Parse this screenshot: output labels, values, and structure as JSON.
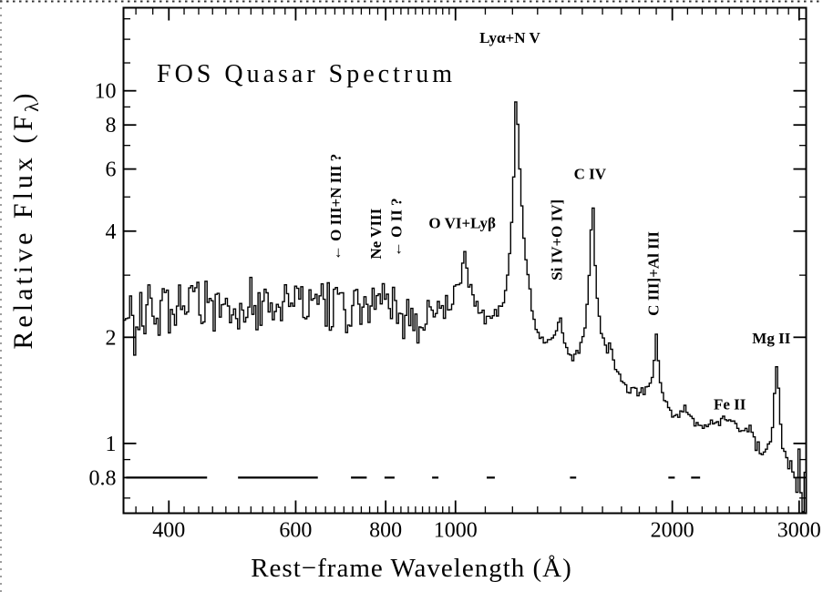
{
  "figure": {
    "title": "FOS Quasar Spectrum",
    "xlabel": "Rest−frame Wavelength (Å)",
    "ylabel_parts": {
      "prefix": "Relative Flux (F",
      "sub": "λ",
      "suffix": ")"
    }
  },
  "colors": {
    "ink": "#000000",
    "background": "#ffffff"
  },
  "chart_data": {
    "type": "line",
    "title": "FOS Quasar Spectrum",
    "xlabel": "Rest-frame Wavelength (Angstrom)",
    "ylabel": "Relative Flux (F_lambda)",
    "x_scale": "log",
    "y_scale": "log",
    "grid": false,
    "legend": false,
    "x_range": [
      346,
      3068
    ],
    "y_range": [
      0.634,
      17.2
    ],
    "x_ticks_major": [
      400,
      600,
      800,
      1000,
      2000,
      3000
    ],
    "x_tick_labels": [
      "400",
      "600",
      "800",
      "1000",
      "2000",
      "3000"
    ],
    "x_ticks_minor": [
      360,
      380,
      420,
      440,
      460,
      480,
      500,
      520,
      540,
      560,
      580,
      620,
      640,
      660,
      680,
      700,
      720,
      740,
      760,
      780,
      820,
      840,
      860,
      880,
      900,
      920,
      940,
      960,
      980,
      1100,
      1200,
      1300,
      1400,
      1500,
      1600,
      1700,
      1800,
      1900,
      2100,
      2200,
      2300,
      2400,
      2500,
      2600,
      2700,
      2800,
      2900
    ],
    "y_ticks_major": [
      10,
      8,
      6,
      4,
      2,
      1,
      0.8
    ],
    "y_tick_labels": [
      "10",
      "8",
      "6",
      "4",
      "2",
      "1",
      "0.8"
    ],
    "y_ticks_minor": [
      16,
      14,
      12,
      9,
      7,
      5,
      3,
      0.9,
      0.7
    ],
    "spectrum_control_points": [
      [
        346,
        2.1
      ],
      [
        352,
        2.5
      ],
      [
        358,
        2.0
      ],
      [
        365,
        2.55
      ],
      [
        372,
        2.3
      ],
      [
        380,
        2.5
      ],
      [
        390,
        2.4
      ],
      [
        400,
        2.5
      ],
      [
        415,
        2.35
      ],
      [
        430,
        2.55
      ],
      [
        450,
        2.45
      ],
      [
        470,
        2.5
      ],
      [
        490,
        2.4
      ],
      [
        510,
        2.5
      ],
      [
        530,
        2.55
      ],
      [
        550,
        2.45
      ],
      [
        570,
        2.5
      ],
      [
        590,
        2.45
      ],
      [
        610,
        2.5
      ],
      [
        630,
        2.4
      ],
      [
        650,
        2.45
      ],
      [
        670,
        2.4
      ],
      [
        690,
        2.45
      ],
      [
        710,
        2.4
      ],
      [
        730,
        2.45
      ],
      [
        750,
        2.5
      ],
      [
        774,
        2.6
      ],
      [
        790,
        2.5
      ],
      [
        810,
        2.45
      ],
      [
        830,
        2.4
      ],
      [
        850,
        2.35
      ],
      [
        870,
        2.3
      ],
      [
        900,
        2.28
      ],
      [
        930,
        2.3
      ],
      [
        960,
        2.4
      ],
      [
        990,
        2.55
      ],
      [
        1010,
        2.8
      ],
      [
        1022,
        3.1
      ],
      [
        1031,
        3.5
      ],
      [
        1040,
        3.05
      ],
      [
        1055,
        2.6
      ],
      [
        1075,
        2.4
      ],
      [
        1100,
        2.32
      ],
      [
        1125,
        2.28
      ],
      [
        1150,
        2.38
      ],
      [
        1170,
        2.6
      ],
      [
        1185,
        3.1
      ],
      [
        1200,
        4.6
      ],
      [
        1208,
        6.8
      ],
      [
        1216,
        9.3
      ],
      [
        1224,
        7.2
      ],
      [
        1232,
        5.2
      ],
      [
        1240,
        4.3
      ],
      [
        1250,
        3.5
      ],
      [
        1262,
        2.9
      ],
      [
        1275,
        2.45
      ],
      [
        1290,
        2.15
      ],
      [
        1305,
        2.0
      ],
      [
        1320,
        1.97
      ],
      [
        1340,
        1.94
      ],
      [
        1360,
        1.99
      ],
      [
        1378,
        2.08
      ],
      [
        1390,
        2.2
      ],
      [
        1397,
        2.3
      ],
      [
        1406,
        2.15
      ],
      [
        1420,
        1.95
      ],
      [
        1438,
        1.82
      ],
      [
        1455,
        1.74
      ],
      [
        1470,
        1.75
      ],
      [
        1485,
        1.83
      ],
      [
        1500,
        1.95
      ],
      [
        1512,
        2.1
      ],
      [
        1524,
        2.45
      ],
      [
        1535,
        3.1
      ],
      [
        1542,
        3.9
      ],
      [
        1549,
        4.65
      ],
      [
        1556,
        3.9
      ],
      [
        1564,
        3.1
      ],
      [
        1572,
        2.6
      ],
      [
        1582,
        2.35
      ],
      [
        1595,
        2.1
      ],
      [
        1610,
        1.92
      ],
      [
        1625,
        1.8
      ],
      [
        1637,
        1.9
      ],
      [
        1648,
        1.78
      ],
      [
        1662,
        1.66
      ],
      [
        1680,
        1.58
      ],
      [
        1700,
        1.52
      ],
      [
        1725,
        1.46
      ],
      [
        1750,
        1.42
      ],
      [
        1775,
        1.4
      ],
      [
        1800,
        1.38
      ],
      [
        1825,
        1.4
      ],
      [
        1850,
        1.46
      ],
      [
        1870,
        1.52
      ],
      [
        1885,
        1.65
      ],
      [
        1896,
        2.0
      ],
      [
        1903,
        2.02
      ],
      [
        1912,
        1.75
      ],
      [
        1925,
        1.52
      ],
      [
        1940,
        1.4
      ],
      [
        1960,
        1.3
      ],
      [
        1980,
        1.24
      ],
      [
        2010,
        1.21
      ],
      [
        2040,
        1.2
      ],
      [
        2070,
        1.24
      ],
      [
        2095,
        1.26
      ],
      [
        2115,
        1.22
      ],
      [
        2140,
        1.17
      ],
      [
        2170,
        1.13
      ],
      [
        2200,
        1.12
      ],
      [
        2240,
        1.13
      ],
      [
        2280,
        1.15
      ],
      [
        2320,
        1.16
      ],
      [
        2360,
        1.16
      ],
      [
        2400,
        1.15
      ],
      [
        2440,
        1.16
      ],
      [
        2480,
        1.14
      ],
      [
        2520,
        1.12
      ],
      [
        2560,
        1.08
      ],
      [
        2600,
        1.03
      ],
      [
        2640,
        0.98
      ],
      [
        2675,
        0.95
      ],
      [
        2700,
        0.94
      ],
      [
        2725,
        0.98
      ],
      [
        2745,
        1.07
      ],
      [
        2765,
        1.22
      ],
      [
        2782,
        1.45
      ],
      [
        2796,
        1.65
      ],
      [
        2806,
        1.5
      ],
      [
        2818,
        1.28
      ],
      [
        2832,
        1.1
      ],
      [
        2848,
        0.98
      ],
      [
        2865,
        0.92
      ],
      [
        2885,
        0.88
      ],
      [
        2910,
        0.86
      ],
      [
        2940,
        0.84
      ],
      [
        2970,
        0.82
      ],
      [
        3000,
        0.8
      ],
      [
        3030,
        0.77
      ],
      [
        3068,
        0.72
      ]
    ],
    "peak_enforce": [
      [
        1031,
        3.5
      ],
      [
        1216,
        9.3
      ],
      [
        1549,
        4.65
      ],
      [
        1903,
        2.02
      ],
      [
        2796,
        1.65
      ]
    ],
    "noise_profile": [
      [
        346,
        0.1
      ],
      [
        500,
        0.1
      ],
      [
        650,
        0.095
      ],
      [
        800,
        0.09
      ],
      [
        900,
        0.075
      ],
      [
        960,
        0.05
      ],
      [
        1000,
        0.035
      ],
      [
        1031,
        0.025
      ],
      [
        1070,
        0.03
      ],
      [
        1120,
        0.03
      ],
      [
        1170,
        0.025
      ],
      [
        1216,
        0.012
      ],
      [
        1260,
        0.02
      ],
      [
        1320,
        0.022
      ],
      [
        1400,
        0.018
      ],
      [
        1470,
        0.018
      ],
      [
        1549,
        0.01
      ],
      [
        1620,
        0.018
      ],
      [
        1700,
        0.018
      ],
      [
        1800,
        0.016
      ],
      [
        1903,
        0.01
      ],
      [
        1960,
        0.015
      ],
      [
        2050,
        0.018
      ],
      [
        2150,
        0.02
      ],
      [
        2250,
        0.022
      ],
      [
        2350,
        0.025
      ],
      [
        2450,
        0.025
      ],
      [
        2550,
        0.028
      ],
      [
        2650,
        0.03
      ],
      [
        2745,
        0.022
      ],
      [
        2796,
        0.02
      ],
      [
        2850,
        0.04
      ],
      [
        2900,
        0.06
      ],
      [
        2950,
        0.08
      ],
      [
        3000,
        0.11
      ],
      [
        3040,
        0.14
      ],
      [
        3068,
        0.16
      ]
    ],
    "n_bins": 335,
    "noise_seed": 20,
    "continuum_windows_flux": 0.8,
    "continuum_windows": [
      [
        349,
        452
      ],
      [
        499,
        644
      ],
      [
        716,
        753
      ],
      [
        797,
        823
      ],
      [
        928,
        947
      ],
      [
        1105,
        1134
      ],
      [
        1442,
        1471
      ],
      [
        1975,
        2016
      ],
      [
        2124,
        2186
      ]
    ],
    "annotations": [
      {
        "id": "lya-nv",
        "label": "Lyα+N V",
        "wavelength": 1190,
        "flux": 14.0,
        "rotated": false,
        "arrow": false
      },
      {
        "id": "o3-n3",
        "label": "← O III+N III ?",
        "wavelength": 685,
        "flux": 3.3,
        "rotated": true,
        "arrow": true
      },
      {
        "id": "ne8",
        "label": "Ne VIII",
        "wavelength": 779,
        "flux": 3.33,
        "rotated": true,
        "arrow": false
      },
      {
        "id": "o2",
        "label": "← O II ?",
        "wavelength": 832,
        "flux": 3.38,
        "rotated": true,
        "arrow": true
      },
      {
        "id": "o6-lyb",
        "label": "O VI+Lyβ",
        "wavelength": 1022,
        "flux": 4.17,
        "rotated": false,
        "arrow": false
      },
      {
        "id": "si4-o4",
        "label": "Si IV+O IV]",
        "wavelength": 1389,
        "flux": 2.9,
        "rotated": true,
        "arrow": false
      },
      {
        "id": "c4",
        "label": "C IV",
        "wavelength": 1537,
        "flux": 5.75,
        "rotated": false,
        "arrow": false
      },
      {
        "id": "c3-al3",
        "label": "C III]+Al III",
        "wavelength": 1893,
        "flux": 2.3,
        "rotated": true,
        "arrow": false
      },
      {
        "id": "fe2",
        "label": "Fe II",
        "wavelength": 2403,
        "flux": 1.28,
        "rotated": false,
        "arrow": false
      },
      {
        "id": "mg2",
        "label": "Mg II",
        "wavelength": 2745,
        "flux": 1.97,
        "rotated": false,
        "arrow": false
      }
    ]
  }
}
